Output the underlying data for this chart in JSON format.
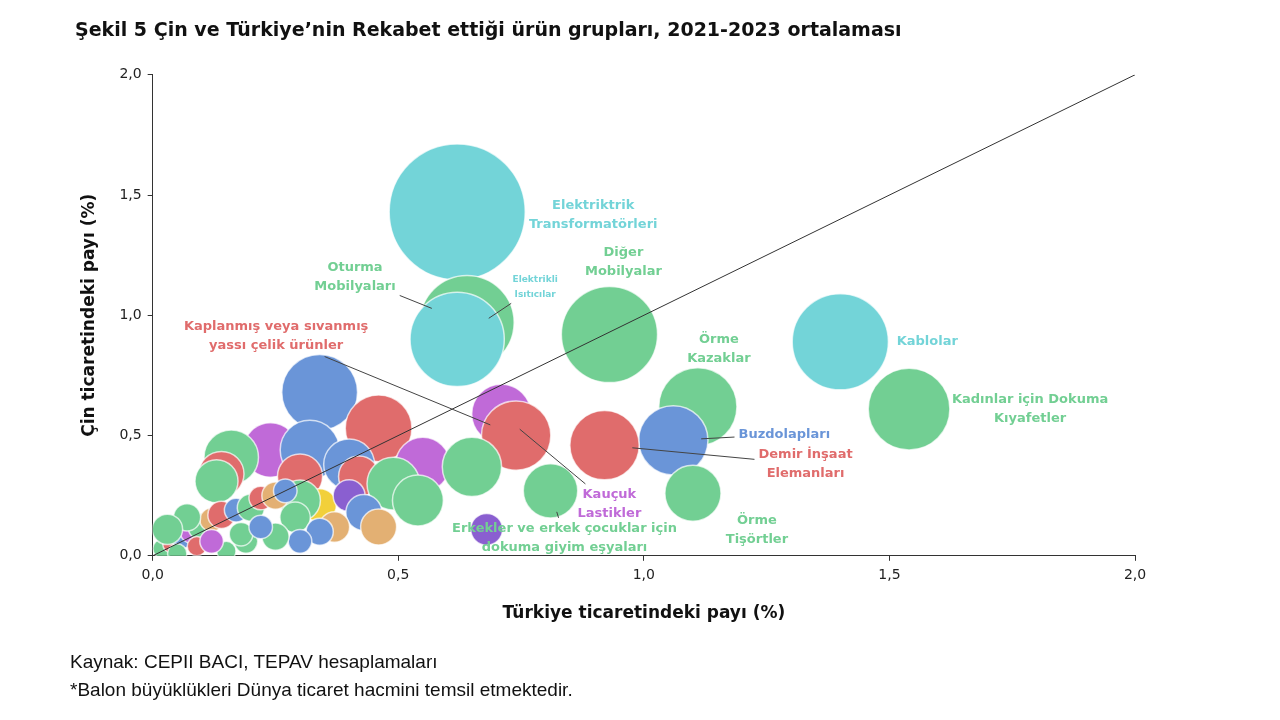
{
  "chart_data": {
    "type": "bubble",
    "title": "Şekil 5 Çin ve Türkiye’nin Rekabet ettiği ürün grupları, 2021-2023 ortalaması",
    "xlabel": "Türkiye ticaretindeki payı (%)",
    "ylabel": "Çin ticaretindeki payı (%)",
    "xlim": [
      0,
      2
    ],
    "ylim": [
      0,
      2
    ],
    "xticks": [
      {
        "value": 0,
        "label": "0,0"
      },
      {
        "value": 0.5,
        "label": "0,5"
      },
      {
        "value": 1,
        "label": "1,0"
      },
      {
        "value": 1.5,
        "label": "1,5"
      },
      {
        "value": 2,
        "label": "2,0"
      }
    ],
    "yticks": [
      {
        "value": 0,
        "label": "0,0"
      },
      {
        "value": 0.5,
        "label": "0,5"
      },
      {
        "value": 1,
        "label": "1,0"
      },
      {
        "value": 1.5,
        "label": "1,5"
      },
      {
        "value": 2,
        "label": "2,0"
      }
    ],
    "grid": false,
    "legend": false,
    "series": [
      {
        "x": [
          0.62,
          0.64,
          0.62,
          0.93,
          1.11,
          1.4,
          1.54,
          1.06,
          0.92,
          1.1,
          0.71,
          0.74,
          0.81,
          0.68,
          0.34,
          0.46,
          0.24,
          0.32,
          0.16,
          0.14,
          0.55,
          0.4,
          0.3,
          0.42,
          0.49,
          0.54,
          0.65,
          0.34,
          0.4,
          0.43,
          0.46,
          0.37,
          0.3,
          0.29,
          0.34,
          0.3,
          0.25,
          0.19,
          0.15,
          0.13,
          0.02,
          0.04,
          0.06,
          0.08,
          0.1,
          0.12,
          0.14,
          0.17,
          0.2,
          0.22,
          0.25,
          0.27,
          0.05,
          0.09,
          0.12,
          0.18,
          0.22,
          0.07,
          0.03
        ],
        "values": [
          1.43,
          0.97,
          0.9,
          0.92,
          0.62,
          0.89,
          0.61,
          0.48,
          0.46,
          0.26,
          0.59,
          0.5,
          0.27,
          0.11,
          0.68,
          0.53,
          0.44,
          0.44,
          0.41,
          0.34,
          0.38,
          0.38,
          0.33,
          0.33,
          0.3,
          0.23,
          0.37,
          0.21,
          0.25,
          0.18,
          0.12,
          0.12,
          0.23,
          0.16,
          0.1,
          0.06,
          0.08,
          0.06,
          0.02,
          0.31,
          0.03,
          0.05,
          0.08,
          0.1,
          0.12,
          0.15,
          0.17,
          0.19,
          0.2,
          0.24,
          0.25,
          0.27,
          0.01,
          0.04,
          0.06,
          0.09,
          0.12,
          0.16,
          0.11
        ],
        "sizes": [
          1,
          0.48,
          0.48,
          0.5,
          0.33,
          0.5,
          0.36,
          0.26,
          0.26,
          0.17,
          0.19,
          0.26,
          0.16,
          0.055,
          0.31,
          0.24,
          0.16,
          0.19,
          0.16,
          0.11,
          0.16,
          0.14,
          0.11,
          0.09,
          0.15,
          0.14,
          0.19,
          0.06,
          0.055,
          0.07,
          0.07,
          0.05,
          0.09,
          0.05,
          0.04,
          0.03,
          0.04,
          0.03,
          0.02,
          0.1,
          0.02,
          0.02,
          0.03,
          0.03,
          0.04,
          0.03,
          0.04,
          0.03,
          0.04,
          0.03,
          0.04,
          0.03,
          0.02,
          0.02,
          0.03,
          0.03,
          0.03,
          0.04,
          0.05
        ],
        "colors": [
          "#73d4d8",
          "#72cf93",
          "#73d4d8",
          "#72cf93",
          "#72cf93",
          "#73d4d8",
          "#72cf93",
          "#6a95d8",
          "#e06c6c",
          "#72cf93",
          "#c06ad8",
          "#e06c6c",
          "#72cf93",
          "#8a5fd0",
          "#6a95d8",
          "#e06c6c",
          "#c06ad8",
          "#6a95d8",
          "#72cf93",
          "#e06c6c",
          "#c06ad8",
          "#6a95d8",
          "#e06c6c",
          "#e06c6c",
          "#72cf93",
          "#72cf93",
          "#72cf93",
          "#f2d03a",
          "#8a5fd0",
          "#6a95d8",
          "#e3b073",
          "#e3b073",
          "#72cf93",
          "#72cf93",
          "#6a95d8",
          "#6a95d8",
          "#72cf93",
          "#72cf93",
          "#72cf93",
          "#72cf93",
          "#72cf93",
          "#e06c6c",
          "#6a95d8",
          "#c06ad8",
          "#72cf93",
          "#e3b073",
          "#e06c6c",
          "#6a95d8",
          "#72cf93",
          "#e06c6c",
          "#e3b073",
          "#6a95d8",
          "#72cf93",
          "#e06c6c",
          "#c06ad8",
          "#72cf93",
          "#6a95d8",
          "#72cf93",
          "#72cf93"
        ]
      },
      {
        "type": "line",
        "x": [
          0,
          2
        ],
        "values": [
          0,
          2
        ],
        "color": "#333333"
      }
    ],
    "annotations": [
      "Elektriktrik Transformatörleri",
      "Oturma Mobilyaları",
      "Elektrikli Isıtıcılar",
      "Diğer Mobilyalar",
      "Örme Kazaklar",
      "Kablolar",
      "Kadınlar için Dokuma Kıyafetler",
      "Buzdolapları",
      "Demir İnşaat Elemanları",
      "Örme Tişörtler",
      "Kauçuk Lastikler",
      "Kaplanmış veya sıvanmış yassı çelik ürünler",
      "Erkekler ve erkek çocuklar için dokuma giyim eşyaları",
      "Kaynak: CEPII BACI, TEPAV hesaplamaları",
      "*Balon büyüklükleri Dünya ticaret hacmini temsil etmektedir."
    ]
  }
}
